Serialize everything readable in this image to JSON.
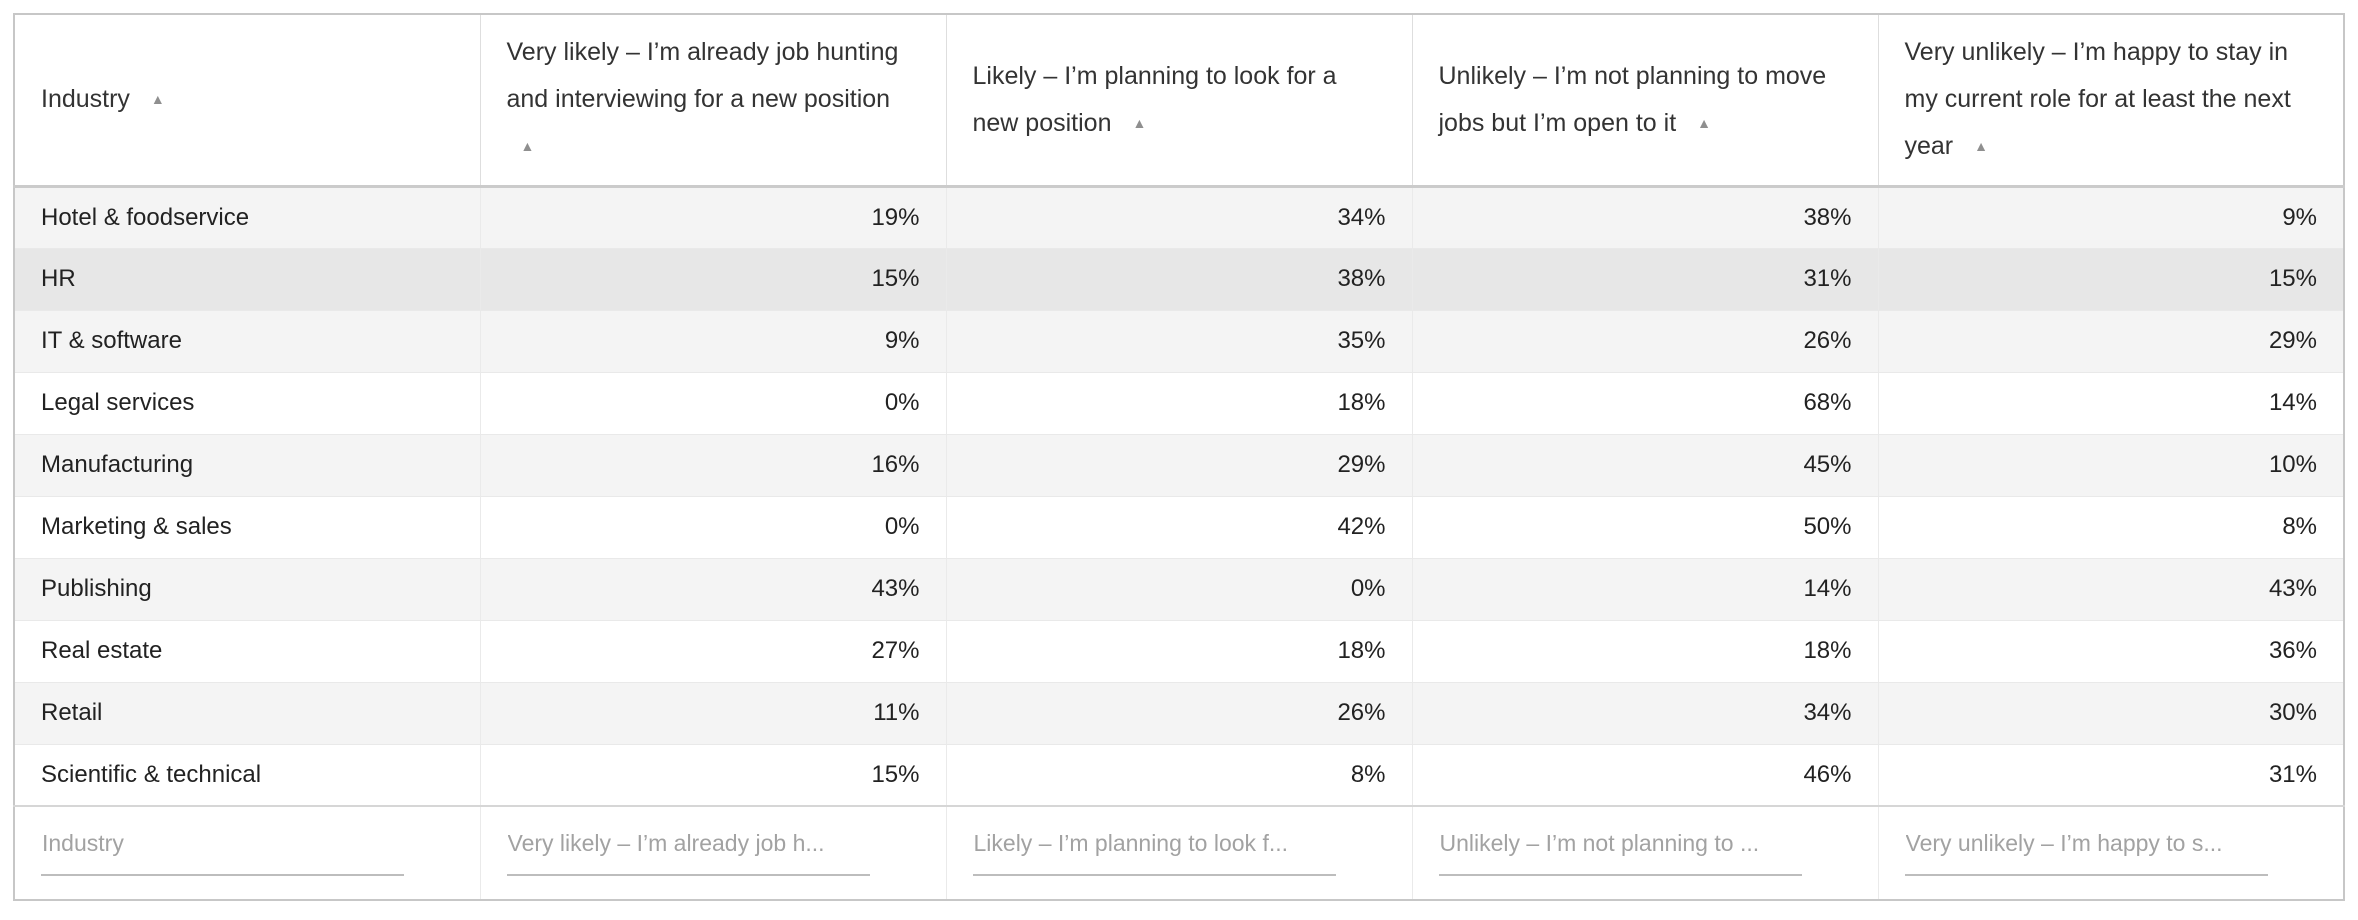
{
  "chart_data": {
    "type": "table",
    "columns": [
      "Industry",
      "Very likely – I’m already job hunting and interviewing for a new position",
      "Likely – I’m planning to look for a new position",
      "Unlikely – I’m not planning to move jobs but I’m open to it",
      "Very unlikely – I’m happy to stay in my current role for at least the next year"
    ],
    "rows": [
      [
        "Hotel & foodservice",
        "19%",
        "34%",
        "38%",
        "9%"
      ],
      [
        "HR",
        "15%",
        "38%",
        "31%",
        "15%"
      ],
      [
        "IT & software",
        "9%",
        "35%",
        "26%",
        "29%"
      ],
      [
        "Legal services",
        "0%",
        "18%",
        "68%",
        "14%"
      ],
      [
        "Manufacturing",
        "16%",
        "29%",
        "45%",
        "10%"
      ],
      [
        "Marketing & sales",
        "0%",
        "42%",
        "50%",
        "8%"
      ],
      [
        "Publishing",
        "43%",
        "0%",
        "14%",
        "43%"
      ],
      [
        "Real estate",
        "27%",
        "18%",
        "18%",
        "36%"
      ],
      [
        "Retail",
        "11%",
        "26%",
        "34%",
        "30%"
      ],
      [
        "Scientific & technical",
        "15%",
        "8%",
        "46%",
        "31%"
      ]
    ],
    "layout_hints": {
      "sort_indicator_on_all_columns": "ascending",
      "value_alignment": "right",
      "striped_rows": true
    }
  },
  "ui": {
    "sort_icon": "▲",
    "highlighted_row": "HR",
    "filter_placeholders": [
      "Industry",
      "Very likely – I’m already job h...",
      "Likely – I’m planning to look f...",
      "Unlikely – I’m not planning to ...",
      "Very unlikely – I’m happy to s..."
    ],
    "colors": {
      "row_stripe": "#f4f4f4",
      "row_highlight": "#e7e7e7",
      "sort_arrow": "#8f8f8f",
      "header_text": "#333333",
      "cell_text": "#222222",
      "placeholder_text": "#a2a2a2",
      "outer_border": "#c7c7c7"
    }
  }
}
